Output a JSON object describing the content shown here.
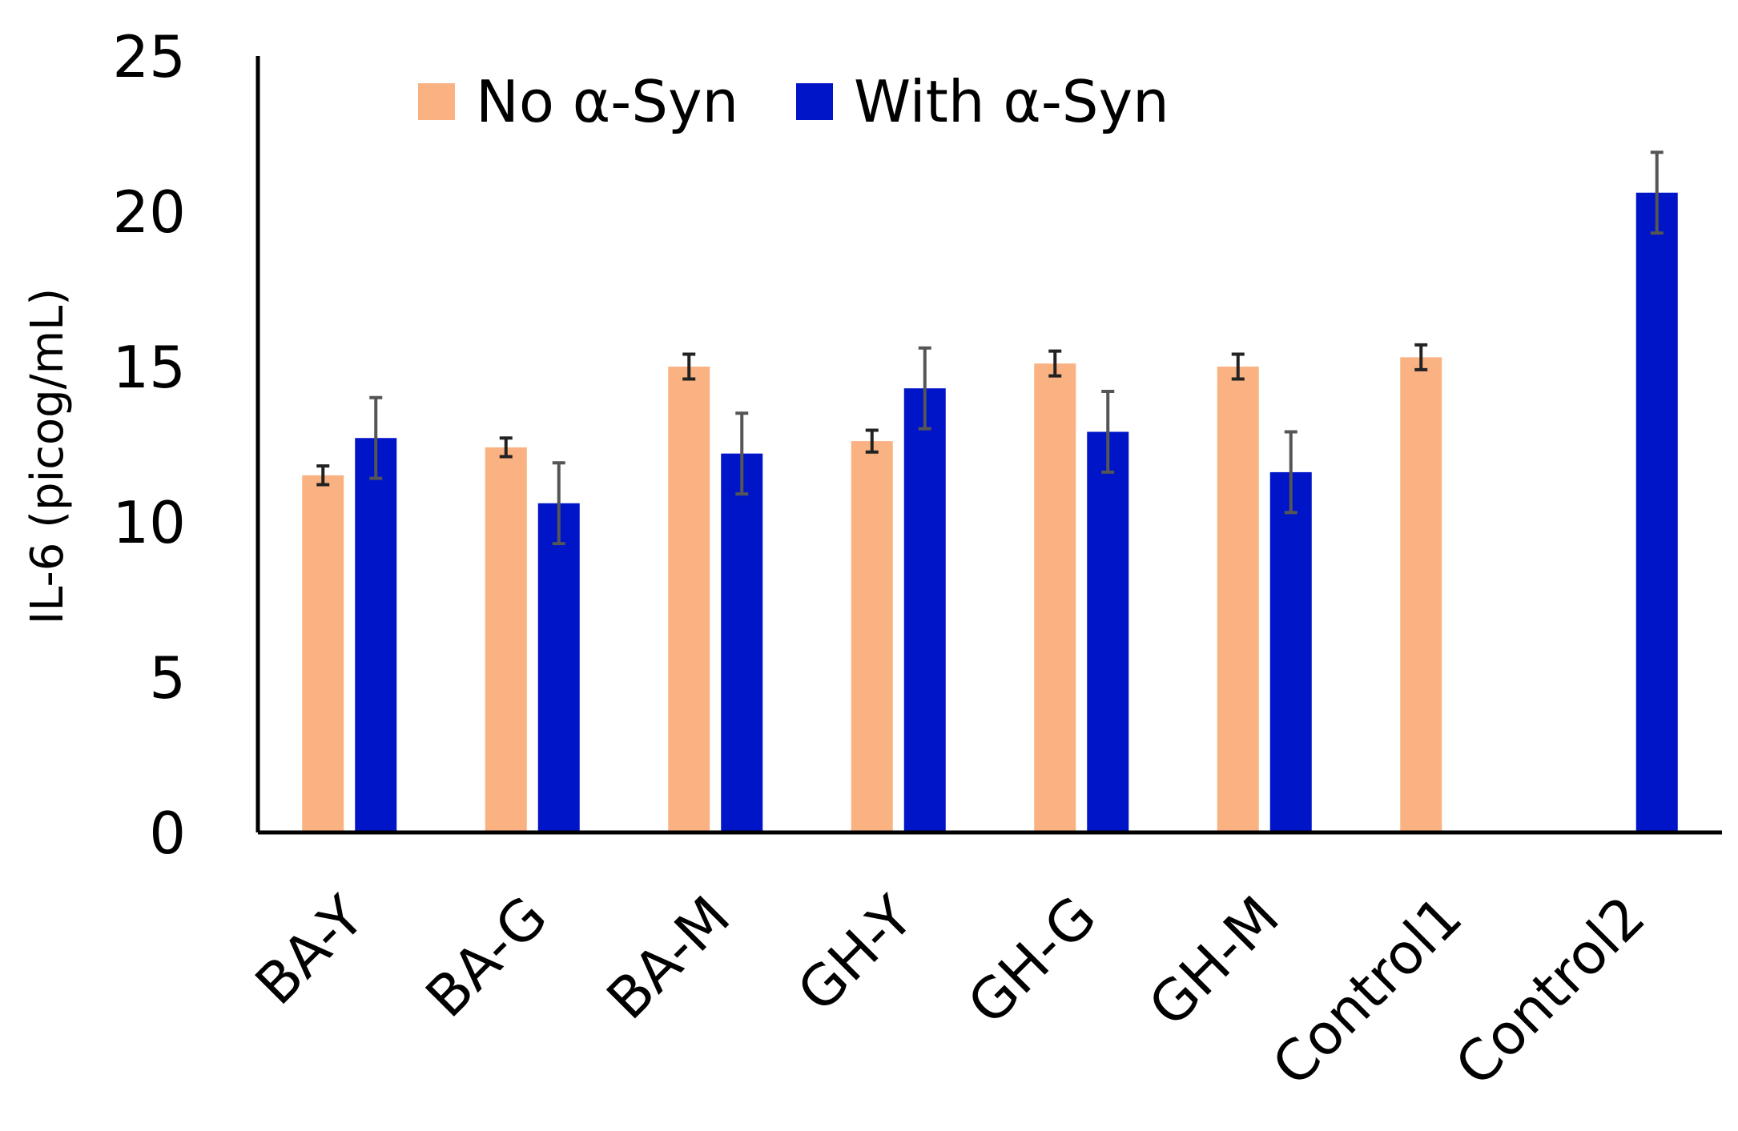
{
  "chart_data": {
    "type": "bar",
    "title": "",
    "xlabel": "",
    "ylabel": "IL-6 (picog/mL)",
    "ylim": [
      0,
      25
    ],
    "yticks": [
      0,
      5,
      10,
      15,
      20,
      25
    ],
    "grid": false,
    "legend_position": "top",
    "categories": [
      "BA-Y",
      "BA-G",
      "BA-M",
      "GH-Y",
      "GH-G",
      "GH-M",
      "Control1",
      "Control2"
    ],
    "series": [
      {
        "name": "No α-Syn",
        "color": "#FAB283",
        "values": [
          11.5,
          12.4,
          15.0,
          12.6,
          15.1,
          15.0,
          15.3,
          null
        ],
        "errors": [
          0.3,
          0.3,
          0.4,
          0.35,
          0.4,
          0.4,
          0.4,
          null
        ]
      },
      {
        "name": "With α-Syn",
        "color": "#0014C8",
        "values": [
          12.7,
          10.6,
          12.2,
          14.3,
          12.9,
          11.6,
          null,
          20.6
        ],
        "errors": [
          1.3,
          1.3,
          1.3,
          1.3,
          1.3,
          1.3,
          null,
          1.3
        ]
      }
    ],
    "error_bar_color": "#555555"
  }
}
